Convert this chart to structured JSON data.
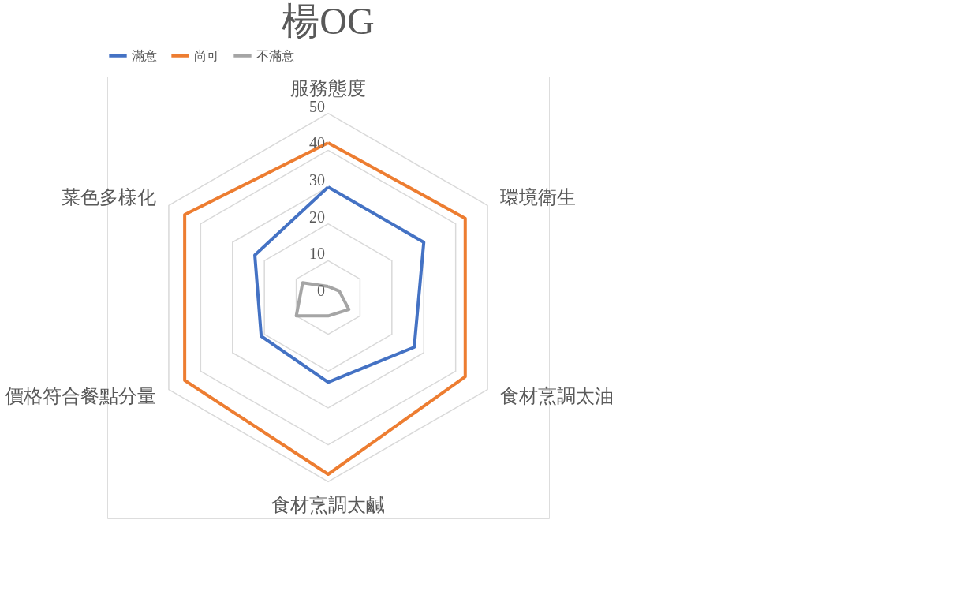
{
  "chart_data": {
    "type": "radar",
    "title": "楊OG",
    "categories": [
      "服務態度",
      "環境衛生",
      "食材烹調太油",
      "食材烹調太鹹",
      "價格符合餐點分量",
      "菜色多樣化"
    ],
    "series": [
      {
        "name": "滿意",
        "color": "#4472c4",
        "values": [
          30,
          30,
          27,
          23,
          21,
          23
        ]
      },
      {
        "name": "尚可",
        "color": "#ed7d31",
        "values": [
          42,
          43,
          43,
          48,
          45,
          45
        ]
      },
      {
        "name": "不滿意",
        "color": "#a5a5a5",
        "values": [
          3,
          3.5,
          6.5,
          5,
          10,
          8
        ]
      }
    ],
    "ylim": [
      0,
      50
    ],
    "yticks": [
      0,
      10,
      20,
      30,
      40,
      50
    ],
    "grid": true,
    "legend": "top",
    "marker": "none"
  }
}
